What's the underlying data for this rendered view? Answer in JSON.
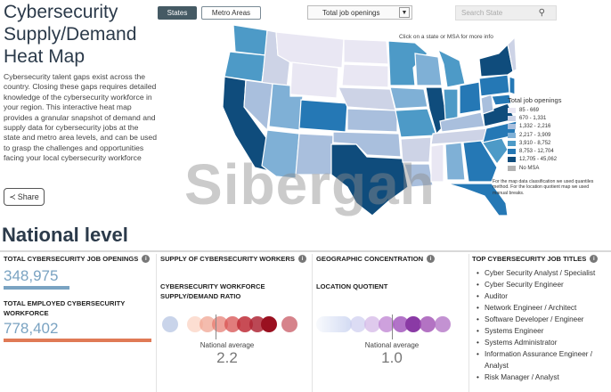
{
  "header": {
    "title": "Cybersecurity Supply/Demand Heat Map",
    "intro": "Cybersecurity talent gaps exist across the country. Closing these gaps requires detailed knowledge of the cybersecurity workforce in your region. This interactive heat map provides a granular snapshot of demand and supply data for cybersecurity jobs at the state and metro area levels, and can be used to grasp the challenges and opportunities facing your local cybersecurity workforce",
    "share_label": "Share"
  },
  "controls": {
    "states_label": "States",
    "metro_label": "Metro Areas",
    "select_value": "Total job openings",
    "search_placeholder": "Search State"
  },
  "map": {
    "hint": "Click on a state or MSA for more info",
    "legend_title": "Total job openings",
    "legend": [
      {
        "label": "85 - 669",
        "color": "#e9e7f3"
      },
      {
        "label": "670 - 1,331",
        "color": "#cdd3e6"
      },
      {
        "label": "1,332 - 2,216",
        "color": "#a9bfdd"
      },
      {
        "label": "2,217 - 3,909",
        "color": "#7fb0d6"
      },
      {
        "label": "3,910 - 8,752",
        "color": "#4d9ac7"
      },
      {
        "label": "8,753 - 12,704",
        "color": "#2578b5"
      },
      {
        "label": "12,705 - 45,062",
        "color": "#0f4c7c"
      },
      {
        "label": "No MSA",
        "color": "#b3b3b3"
      }
    ],
    "note": "For the map data classification we used quantiles method. For the location quotient map we used manual breaks."
  },
  "watermark": "Sibergah",
  "national": {
    "heading": "National level",
    "col1": {
      "head1": "TOTAL CYBERSECURITY JOB OPENINGS",
      "value1": "348,975",
      "head2": "TOTAL EMPLOYED CYBERSECURITY WORKFORCE",
      "value2": "778,402",
      "bar1_color": "#7aa3c2",
      "bar2_color": "#e07a56"
    },
    "col2": {
      "head": "SUPPLY OF CYBERSECURITY WORKERS",
      "sub": "CYBERSECURITY WORKFORCE SUPPLY/DEMAND RATIO",
      "avg_label": "National average",
      "avg_value": "2.2"
    },
    "col3": {
      "head": "GEOGRAPHIC CONCENTRATION",
      "sub": "LOCATION QUOTIENT",
      "avg_label": "National average",
      "avg_value": "1.0"
    },
    "col4": {
      "head": "TOP CYBERSECURITY JOB TITLES",
      "items": [
        "Cyber Security Analyst / Specialist",
        "Cyber Security Engineer",
        "Auditor",
        "Network Engineer / Architect",
        "Software Developer / Engineer",
        "Systems Engineer",
        "Systems Administrator",
        "Information Assurance Engineer / Analyst",
        "Risk Manager / Analyst"
      ]
    }
  }
}
